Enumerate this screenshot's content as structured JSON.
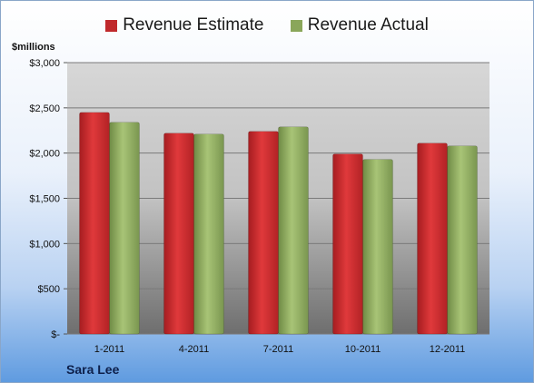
{
  "chart_data": {
    "type": "bar",
    "title": "",
    "unit_label": "$millions",
    "company": "Sara Lee",
    "categories": [
      "1-2011",
      "4-2011",
      "7-2011",
      "10-2011",
      "12-2011"
    ],
    "series": [
      {
        "name": "Revenue Estimate",
        "color": "#c0292c",
        "values": [
          2450,
          2220,
          2240,
          1990,
          2110
        ]
      },
      {
        "name": "Revenue Actual",
        "color": "#8aa65a",
        "values": [
          2340,
          2210,
          2290,
          1930,
          2080
        ]
      }
    ],
    "ylim": [
      0,
      3000
    ],
    "yticks": [
      0,
      500,
      1000,
      1500,
      2000,
      2500,
      3000
    ],
    "ytick_labels": [
      "$-",
      "$500",
      "$1,000",
      "$1,500",
      "$2,000",
      "$2,500",
      "$3,000"
    ],
    "grid": true,
    "legend_position": "top"
  }
}
